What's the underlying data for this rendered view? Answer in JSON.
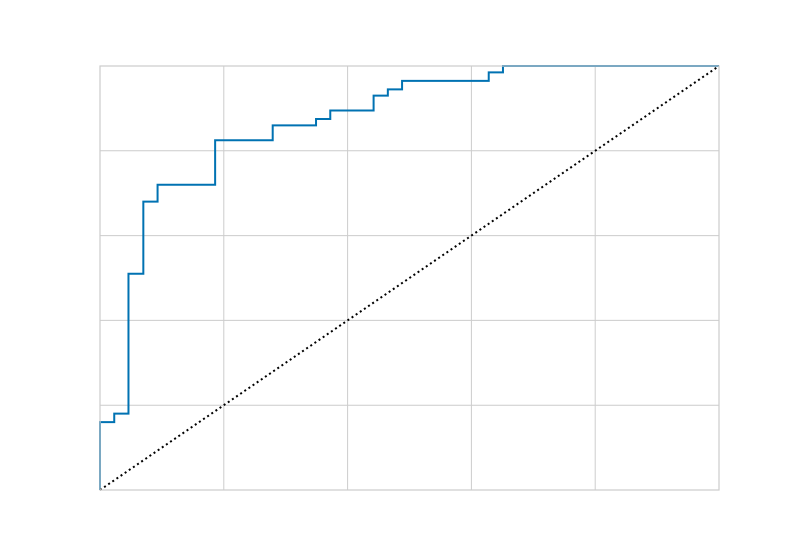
{
  "chart_data": {
    "type": "line",
    "title": "",
    "xlabel": "",
    "ylabel": "",
    "xlim": [
      0,
      1
    ],
    "ylim": [
      0,
      1
    ],
    "grid": true,
    "x_gridlines": [
      0.2,
      0.4,
      0.6,
      0.8
    ],
    "y_gridlines": [
      0.2,
      0.4,
      0.6,
      0.8
    ],
    "series": [
      {
        "style": "step",
        "color": "#0072b2",
        "x": [
          0.0,
          0.0,
          0.023,
          0.023,
          0.046,
          0.046,
          0.07,
          0.07,
          0.093,
          0.093,
          0.186,
          0.186,
          0.279,
          0.279,
          0.349,
          0.349,
          0.372,
          0.372,
          0.442,
          0.442,
          0.465,
          0.465,
          0.488,
          0.488,
          0.628,
          0.628,
          0.651,
          0.651,
          1.0
        ],
        "y": [
          0.0,
          0.16,
          0.16,
          0.18,
          0.18,
          0.51,
          0.51,
          0.68,
          0.68,
          0.72,
          0.72,
          0.825,
          0.825,
          0.86,
          0.86,
          0.875,
          0.875,
          0.895,
          0.895,
          0.93,
          0.93,
          0.945,
          0.945,
          0.965,
          0.965,
          0.985,
          0.985,
          1.0,
          1.0
        ]
      },
      {
        "style": "dotted",
        "color": "#000000",
        "x": [
          0,
          1
        ],
        "y": [
          0,
          1
        ]
      }
    ]
  }
}
